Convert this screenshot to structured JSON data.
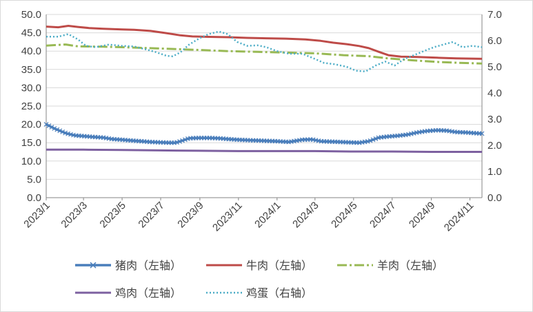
{
  "chart_data": {
    "type": "line",
    "title": "",
    "y_left": {
      "min": 0,
      "max": 50,
      "step": 5,
      "tick_labels": [
        "0.0",
        "5.0",
        "10.0",
        "15.0",
        "20.0",
        "25.0",
        "30.0",
        "35.0",
        "40.0",
        "45.0",
        "50.0"
      ]
    },
    "y_right": {
      "min": 0,
      "max": 7,
      "step": 1,
      "tick_labels": [
        "0.0",
        "1.0",
        "2.0",
        "3.0",
        "4.0",
        "5.0",
        "6.0",
        "7.0"
      ]
    },
    "x_range": [
      "2023-01-01",
      "2024-11-20"
    ],
    "x_tick_labels": [
      "2023/1",
      "2023/3",
      "2023/5",
      "2023/7",
      "2023/9",
      "2023/11",
      "2024/1",
      "2024/3",
      "2024/5",
      "2024/7",
      "2024/9",
      "2024/11"
    ],
    "grid": "horizontal",
    "legend_position": "bottom",
    "colors": {
      "pork": "#4a7ebb",
      "beef": "#be4b48",
      "mutton": "#98b954",
      "chicken": "#7d60a0",
      "egg": "#4bacc6",
      "grid": "#d9d9d9",
      "axis": "#868686"
    },
    "series": [
      {
        "key": "pork",
        "name": "猪肉（左轴）",
        "axis": "left",
        "style": "cross-marker",
        "points": [
          [
            "2023-01-01",
            20.0
          ],
          [
            "2023-01-15",
            18.8
          ],
          [
            "2023-02-01",
            17.6
          ],
          [
            "2023-02-15",
            17.0
          ],
          [
            "2023-03-01",
            16.8
          ],
          [
            "2023-03-15",
            16.6
          ],
          [
            "2023-04-01",
            16.4
          ],
          [
            "2023-04-15",
            16.0
          ],
          [
            "2023-05-01",
            15.8
          ],
          [
            "2023-05-15",
            15.6
          ],
          [
            "2023-06-01",
            15.4
          ],
          [
            "2023-06-15",
            15.2
          ],
          [
            "2023-07-01",
            15.1
          ],
          [
            "2023-07-15",
            15.0
          ],
          [
            "2023-07-25",
            15.0
          ],
          [
            "2023-08-05",
            15.6
          ],
          [
            "2023-08-15",
            16.2
          ],
          [
            "2023-09-01",
            16.3
          ],
          [
            "2023-09-15",
            16.3
          ],
          [
            "2023-10-01",
            16.2
          ],
          [
            "2023-10-15",
            16.0
          ],
          [
            "2023-11-01",
            15.8
          ],
          [
            "2023-11-15",
            15.7
          ],
          [
            "2023-12-01",
            15.6
          ],
          [
            "2023-12-15",
            15.5
          ],
          [
            "2024-01-01",
            15.4
          ],
          [
            "2024-01-20",
            15.2
          ],
          [
            "2024-02-10",
            15.8
          ],
          [
            "2024-02-25",
            15.9
          ],
          [
            "2024-03-10",
            15.4
          ],
          [
            "2024-03-25",
            15.3
          ],
          [
            "2024-04-10",
            15.2
          ],
          [
            "2024-04-25",
            15.1
          ],
          [
            "2024-05-10",
            15.0
          ],
          [
            "2024-05-25",
            15.4
          ],
          [
            "2024-06-10",
            16.4
          ],
          [
            "2024-06-25",
            16.7
          ],
          [
            "2024-07-10",
            16.9
          ],
          [
            "2024-07-25",
            17.2
          ],
          [
            "2024-08-10",
            17.8
          ],
          [
            "2024-08-25",
            18.2
          ],
          [
            "2024-09-10",
            18.4
          ],
          [
            "2024-09-25",
            18.3
          ],
          [
            "2024-10-10",
            17.9
          ],
          [
            "2024-10-25",
            17.8
          ],
          [
            "2024-11-10",
            17.6
          ],
          [
            "2024-11-20",
            17.5
          ]
        ]
      },
      {
        "key": "beef",
        "name": "牛肉（左轴）",
        "axis": "left",
        "style": "solid",
        "points": [
          [
            "2023-01-01",
            46.7
          ],
          [
            "2023-01-20",
            46.5
          ],
          [
            "2023-02-05",
            46.9
          ],
          [
            "2023-02-20",
            46.6
          ],
          [
            "2023-03-10",
            46.3
          ],
          [
            "2023-04-01",
            46.1
          ],
          [
            "2023-05-01",
            45.9
          ],
          [
            "2023-05-20",
            45.8
          ],
          [
            "2023-06-15",
            45.5
          ],
          [
            "2023-07-10",
            44.9
          ],
          [
            "2023-08-01",
            44.3
          ],
          [
            "2023-08-20",
            44.0
          ],
          [
            "2023-09-15",
            43.9
          ],
          [
            "2023-10-15",
            43.8
          ],
          [
            "2023-11-15",
            43.6
          ],
          [
            "2023-12-15",
            43.5
          ],
          [
            "2024-01-15",
            43.4
          ],
          [
            "2024-02-15",
            43.2
          ],
          [
            "2024-03-10",
            42.8
          ],
          [
            "2024-03-30",
            42.3
          ],
          [
            "2024-04-20",
            41.9
          ],
          [
            "2024-05-10",
            41.4
          ],
          [
            "2024-05-25",
            40.8
          ],
          [
            "2024-06-10",
            39.8
          ],
          [
            "2024-06-25",
            38.9
          ],
          [
            "2024-07-15",
            38.5
          ],
          [
            "2024-08-10",
            38.4
          ],
          [
            "2024-09-10",
            38.2
          ],
          [
            "2024-10-10",
            38.0
          ],
          [
            "2024-11-20",
            37.9
          ]
        ]
      },
      {
        "key": "mutton",
        "name": "羊肉（左轴）",
        "axis": "left",
        "style": "dash-dot",
        "points": [
          [
            "2023-01-01",
            41.5
          ],
          [
            "2023-02-01",
            41.8
          ],
          [
            "2023-02-20",
            41.3
          ],
          [
            "2023-04-01",
            41.2
          ],
          [
            "2023-05-15",
            41.0
          ],
          [
            "2023-07-01",
            40.7
          ],
          [
            "2023-08-01",
            40.5
          ],
          [
            "2023-09-01",
            40.3
          ],
          [
            "2023-10-15",
            40.0
          ],
          [
            "2023-12-01",
            39.8
          ],
          [
            "2024-01-15",
            39.6
          ],
          [
            "2024-03-01",
            39.4
          ],
          [
            "2024-04-15",
            38.9
          ],
          [
            "2024-05-25",
            38.6
          ],
          [
            "2024-06-25",
            38.0
          ],
          [
            "2024-08-01",
            37.5
          ],
          [
            "2024-09-15",
            37.0
          ],
          [
            "2024-10-15",
            36.8
          ],
          [
            "2024-11-20",
            36.6
          ]
        ]
      },
      {
        "key": "chicken",
        "name": "鸡肉（左轴）",
        "axis": "left",
        "style": "solid",
        "points": [
          [
            "2023-01-01",
            13.1
          ],
          [
            "2023-03-01",
            13.1
          ],
          [
            "2023-05-01",
            13.0
          ],
          [
            "2023-07-01",
            12.9
          ],
          [
            "2023-09-01",
            12.8
          ],
          [
            "2023-11-01",
            12.7
          ],
          [
            "2024-01-01",
            12.7
          ],
          [
            "2024-03-01",
            12.7
          ],
          [
            "2024-05-01",
            12.6
          ],
          [
            "2024-07-01",
            12.6
          ],
          [
            "2024-09-01",
            12.5
          ],
          [
            "2024-11-20",
            12.5
          ]
        ]
      },
      {
        "key": "egg",
        "name": "鸡蛋（右轴）",
        "axis": "right",
        "style": "dotted",
        "points": [
          [
            "2023-01-01",
            6.15
          ],
          [
            "2023-01-20",
            6.15
          ],
          [
            "2023-02-05",
            6.25
          ],
          [
            "2023-02-20",
            6.05
          ],
          [
            "2023-03-05",
            5.8
          ],
          [
            "2023-03-20",
            5.75
          ],
          [
            "2023-04-10",
            5.85
          ],
          [
            "2023-05-01",
            5.8
          ],
          [
            "2023-05-20",
            5.78
          ],
          [
            "2023-06-10",
            5.65
          ],
          [
            "2023-06-25",
            5.55
          ],
          [
            "2023-07-10",
            5.42
          ],
          [
            "2023-07-20",
            5.4
          ],
          [
            "2023-08-01",
            5.55
          ],
          [
            "2023-08-15",
            5.85
          ],
          [
            "2023-09-01",
            6.1
          ],
          [
            "2023-09-15",
            6.25
          ],
          [
            "2023-10-01",
            6.35
          ],
          [
            "2023-10-15",
            6.25
          ],
          [
            "2023-10-30",
            5.95
          ],
          [
            "2023-11-15",
            5.8
          ],
          [
            "2023-12-01",
            5.82
          ],
          [
            "2023-12-15",
            5.75
          ],
          [
            "2024-01-01",
            5.6
          ],
          [
            "2024-01-20",
            5.5
          ],
          [
            "2024-02-10",
            5.5
          ],
          [
            "2024-03-01",
            5.3
          ],
          [
            "2024-03-15",
            5.15
          ],
          [
            "2024-04-01",
            5.1
          ],
          [
            "2024-04-20",
            5.0
          ],
          [
            "2024-05-05",
            4.85
          ],
          [
            "2024-05-20",
            4.82
          ],
          [
            "2024-06-05",
            5.05
          ],
          [
            "2024-06-20",
            5.2
          ],
          [
            "2024-07-05",
            5.05
          ],
          [
            "2024-07-20",
            5.3
          ],
          [
            "2024-08-05",
            5.45
          ],
          [
            "2024-08-20",
            5.6
          ],
          [
            "2024-09-05",
            5.75
          ],
          [
            "2024-09-20",
            5.85
          ],
          [
            "2024-10-05",
            5.95
          ],
          [
            "2024-10-20",
            5.75
          ],
          [
            "2024-11-05",
            5.8
          ],
          [
            "2024-11-20",
            5.75
          ]
        ]
      }
    ]
  }
}
